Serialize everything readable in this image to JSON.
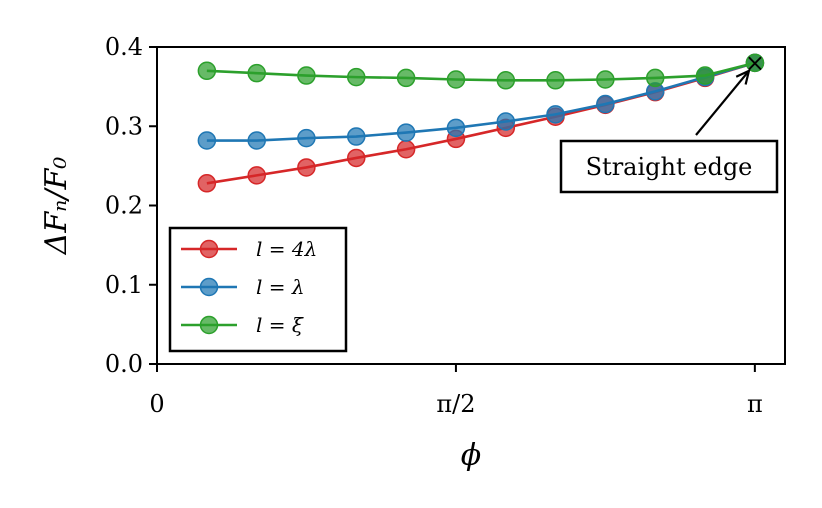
{
  "chart_data": {
    "type": "line",
    "title": "",
    "xlabel": "ϕ",
    "ylabel": "ΔFₙ/F₀",
    "xlim": [
      0,
      3.3
    ],
    "ylim": [
      0,
      0.4
    ],
    "xticks": [
      {
        "value": 0,
        "label": "0"
      },
      {
        "value": 1.5708,
        "label": "π/2"
      },
      {
        "value": 3.1416,
        "label": "π"
      }
    ],
    "yticks": [
      {
        "value": 0.0,
        "label": "0.0"
      },
      {
        "value": 0.1,
        "label": "0.1"
      },
      {
        "value": 0.2,
        "label": "0.2"
      },
      {
        "value": 0.3,
        "label": "0.3"
      },
      {
        "value": 0.4,
        "label": "0.4"
      }
    ],
    "grid": false,
    "legend_position": "bottom-left",
    "series": [
      {
        "name": "l = 4λ",
        "color": "#d62728",
        "x": [
          0.262,
          0.524,
          0.785,
          1.047,
          1.309,
          1.571,
          1.833,
          2.094,
          2.356,
          2.618,
          2.88,
          3.142
        ],
        "y": [
          0.228,
          0.238,
          0.248,
          0.26,
          0.271,
          0.284,
          0.298,
          0.312,
          0.327,
          0.343,
          0.361,
          0.38
        ]
      },
      {
        "name": "l = λ",
        "color": "#1f77b4",
        "x": [
          0.262,
          0.524,
          0.785,
          1.047,
          1.309,
          1.571,
          1.833,
          2.094,
          2.356,
          2.618,
          2.88,
          3.142
        ],
        "y": [
          0.282,
          0.282,
          0.285,
          0.287,
          0.292,
          0.298,
          0.306,
          0.315,
          0.328,
          0.344,
          0.362,
          0.38
        ]
      },
      {
        "name": "l = ξ",
        "color": "#2ca02c",
        "x": [
          0.262,
          0.524,
          0.785,
          1.047,
          1.309,
          1.571,
          1.833,
          2.094,
          2.356,
          2.618,
          2.88,
          3.142
        ],
        "y": [
          0.37,
          0.367,
          0.364,
          0.362,
          0.361,
          0.359,
          0.358,
          0.358,
          0.359,
          0.361,
          0.364,
          0.38
        ]
      }
    ],
    "annotation": {
      "text": "Straight edge",
      "marker": "×",
      "point": {
        "x": 3.142,
        "y": 0.38
      }
    }
  }
}
